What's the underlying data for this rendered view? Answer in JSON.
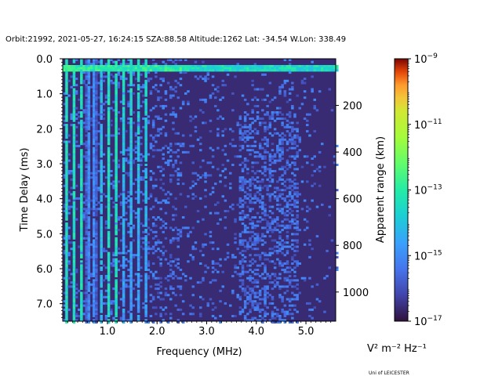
{
  "header": "Orbit:21992, 2021-05-27, 16:24:15 SZA:88.58 Altitude:1262 Lat: -34.54 W.Lon: 338.49",
  "footer": "Uni of LEICESTER",
  "chart_data": {
    "type": "heatmap",
    "title": "Orbit:21992, 2021-05-27, 16:24:15 SZA:88.58 Altitude:1262 Lat: -34.54 W.Lon: 338.49",
    "xlabel": "Frequency (MHz)",
    "ylabel": "Time Delay (ms)",
    "y2label": "Apparent range (km)",
    "xlim": [
      0.1,
      5.6
    ],
    "ylim": [
      7.5,
      0.0
    ],
    "xticks": [
      "1.0",
      "2.0",
      "3.0",
      "4.0",
      "5.0"
    ],
    "yticks": [
      "0.0",
      "1.0",
      "2.0",
      "3.0",
      "4.0",
      "5.0",
      "6.0",
      "7.0"
    ],
    "y2ticks": [
      "200",
      "400",
      "600",
      "800",
      "1000"
    ],
    "y2_values_km": [
      200,
      400,
      600,
      800,
      1000
    ],
    "colorbar": {
      "label": "V² m⁻² Hz⁻¹",
      "scale": "log",
      "min_exp": -17,
      "max_exp": -9,
      "ticks": [
        -17,
        -15,
        -13,
        -11,
        -9
      ],
      "colormap": "turbo"
    },
    "features": {
      "background_exp": -16.6,
      "surface_echo_band_delay_ms": [
        0.15,
        0.3
      ],
      "surface_echo_exp": -13.5,
      "strong_columns_MHz": [
        0.15,
        0.3,
        0.45,
        0.58,
        0.72,
        0.86,
        1.0,
        1.15,
        1.3,
        1.45,
        1.6,
        1.75
      ],
      "noise_cluster_MHz": [
        3.6,
        4.8
      ]
    }
  }
}
